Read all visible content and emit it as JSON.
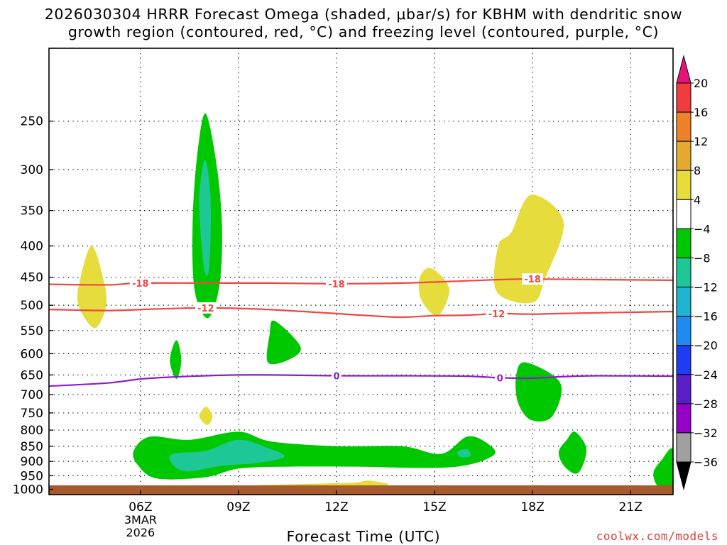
{
  "title_line1": "2026030304 HRRR Forecast Omega (shaded, μbar/s) for KBHM with dendritic snow",
  "title_line2": "growth region (contoured, red, °C) and freezing level (contoured, purple, °C)",
  "credit": "coolwx.com/models",
  "chart_data": {
    "type": "heatmap",
    "title": "2026030304 HRRR Forecast Omega (shaded, μbar/s) for KBHM with dendritic snow growth region (contoured, red, °C) and freezing level (contoured, purple, °C)",
    "xlabel": "Forecast Time (UTC)",
    "ylabel": "",
    "xlim_hours": [
      3.2,
      22.3
    ],
    "ylim_hpa": [
      1020,
      190
    ],
    "y_scale": "log",
    "x_ticks": [
      {
        "hour": 6,
        "label": "06Z",
        "sub1": "3MAR",
        "sub2": "2026"
      },
      {
        "hour": 9,
        "label": "09Z",
        "sub1": "",
        "sub2": ""
      },
      {
        "hour": 12,
        "label": "12Z",
        "sub1": "",
        "sub2": ""
      },
      {
        "hour": 15,
        "label": "15Z",
        "sub1": "",
        "sub2": ""
      },
      {
        "hour": 18,
        "label": "18Z",
        "sub1": "",
        "sub2": ""
      },
      {
        "hour": 21,
        "label": "21Z",
        "sub1": "",
        "sub2": ""
      }
    ],
    "y_ticks": [
      250,
      300,
      350,
      400,
      450,
      500,
      550,
      600,
      650,
      700,
      750,
      800,
      850,
      900,
      950,
      1000
    ],
    "grid": "dotted",
    "surface_level_hpa": 985,
    "surface_color": "#a65a2e",
    "colorbar": {
      "labels": [
        "20",
        "16",
        "12",
        "8",
        "4",
        "−4",
        "−8",
        "−12",
        "−16",
        "−20",
        "−24",
        "−28",
        "−32",
        "−36"
      ],
      "colors": [
        "#f03c3c",
        "#ee8228",
        "#e6aa32",
        "#e6dc3c",
        "#ffffff",
        "#00c800",
        "#1ec896",
        "#1eb4d2",
        "#1e8cf0",
        "#1e3cf0",
        "#5a1ec8",
        "#9600c8",
        "#a0a0a0"
      ],
      "top_arrow_color": "#e6147a",
      "bottom_arrow_color": "#000000"
    },
    "shaded_regions": [
      {
        "class": "pos4",
        "color": "#e6dc3c",
        "points": [
          [
            4.5,
            400
          ],
          [
            4.85,
            450
          ],
          [
            4.95,
            500
          ],
          [
            4.6,
            545
          ],
          [
            4.1,
            500
          ],
          [
            4.15,
            455
          ]
        ]
      },
      {
        "class": "neg4",
        "color": "#00c800",
        "points": [
          [
            8.0,
            243
          ],
          [
            8.35,
            300
          ],
          [
            8.5,
            380
          ],
          [
            8.4,
            470
          ],
          [
            8.05,
            525
          ],
          [
            7.65,
            470
          ],
          [
            7.6,
            360
          ],
          [
            7.75,
            280
          ]
        ]
      },
      {
        "class": "neg8",
        "color": "#1ec896",
        "points": [
          [
            8.0,
            290
          ],
          [
            8.15,
            340
          ],
          [
            8.1,
            435
          ],
          [
            7.95,
            435
          ],
          [
            7.8,
            350
          ],
          [
            7.85,
            310
          ]
        ]
      },
      {
        "class": "neg4",
        "color": "#00c800",
        "points": [
          [
            7.1,
            570
          ],
          [
            7.25,
            615
          ],
          [
            7.1,
            660
          ],
          [
            6.9,
            615
          ]
        ]
      },
      {
        "class": "pos4",
        "color": "#e6dc3c",
        "points": [
          [
            8.0,
            733
          ],
          [
            8.2,
            758
          ],
          [
            8.05,
            785
          ],
          [
            7.8,
            760
          ]
        ]
      },
      {
        "class": "neg4",
        "color": "#00c800",
        "points": [
          [
            10.1,
            530
          ],
          [
            10.9,
            585
          ],
          [
            10.5,
            615
          ],
          [
            9.9,
            620
          ],
          [
            9.95,
            560
          ]
        ]
      },
      {
        "class": "pos4",
        "color": "#e6dc3c",
        "points": [
          [
            14.9,
            435
          ],
          [
            15.45,
            470
          ],
          [
            15.1,
            520
          ],
          [
            14.6,
            490
          ],
          [
            14.55,
            450
          ]
        ]
      },
      {
        "class": "pos4",
        "color": "#e6dc3c",
        "points": [
          [
            17.95,
            330
          ],
          [
            18.95,
            365
          ],
          [
            18.4,
            450
          ],
          [
            18.0,
            495
          ],
          [
            16.9,
            475
          ],
          [
            16.95,
            400
          ],
          [
            17.35,
            380
          ]
        ]
      },
      {
        "class": "neg4",
        "color": "#00c800",
        "points": [
          [
            17.8,
            620
          ],
          [
            18.85,
            670
          ],
          [
            18.6,
            760
          ],
          [
            17.95,
            770
          ],
          [
            17.55,
            720
          ],
          [
            17.5,
            650
          ]
        ]
      },
      {
        "class": "neg4",
        "color": "#00c800",
        "points": [
          [
            19.3,
            805
          ],
          [
            19.65,
            860
          ],
          [
            19.4,
            940
          ],
          [
            19.0,
            920
          ],
          [
            18.8,
            870
          ],
          [
            19.05,
            830
          ]
        ]
      },
      {
        "class": "neg4",
        "color": "#00c800",
        "points": [
          [
            5.8,
            863
          ],
          [
            6.3,
            820
          ],
          [
            7.5,
            830
          ],
          [
            9.0,
            805
          ],
          [
            10.0,
            835
          ],
          [
            12.0,
            850
          ],
          [
            14.0,
            850
          ],
          [
            15.2,
            875
          ],
          [
            16.0,
            820
          ],
          [
            16.6,
            840
          ],
          [
            16.8,
            880
          ],
          [
            15.5,
            920
          ],
          [
            12.5,
            918
          ],
          [
            10.5,
            918
          ],
          [
            9.0,
            925
          ],
          [
            8.0,
            955
          ],
          [
            6.5,
            960
          ],
          [
            5.9,
            910
          ]
        ]
      },
      {
        "class": "neg8",
        "color": "#1ec896",
        "points": [
          [
            7.0,
            875
          ],
          [
            8.0,
            865
          ],
          [
            9.0,
            830
          ],
          [
            10.0,
            860
          ],
          [
            10.4,
            885
          ],
          [
            9.6,
            905
          ],
          [
            8.5,
            915
          ],
          [
            7.4,
            935
          ],
          [
            6.95,
            905
          ]
        ]
      },
      {
        "class": "neg8",
        "color": "#1ec896",
        "points": [
          [
            15.7,
            868
          ],
          [
            16.0,
            860
          ],
          [
            16.1,
            882
          ],
          [
            15.8,
            885
          ]
        ]
      },
      {
        "class": "neg4",
        "color": "#00c800",
        "points": [
          [
            22.3,
            860
          ],
          [
            22.3,
            1000
          ],
          [
            21.85,
            990
          ],
          [
            21.7,
            940
          ],
          [
            21.95,
            895
          ]
        ]
      },
      {
        "class": "pos4",
        "color": "#e6dc3c",
        "points": [
          [
            9.55,
            985
          ],
          [
            11.0,
            980
          ],
          [
            12.5,
            975
          ],
          [
            13.0,
            968
          ],
          [
            13.5,
            985
          ],
          [
            11.0,
            993
          ],
          [
            9.6,
            993
          ]
        ]
      }
    ],
    "contours": [
      {
        "name": "-18",
        "color": "#f04646",
        "labels_at_hours": [
          6.0,
          12.0,
          18.0
        ],
        "points": [
          [
            3.2,
            462
          ],
          [
            5,
            463
          ],
          [
            6,
            460
          ],
          [
            8,
            460
          ],
          [
            10,
            460
          ],
          [
            12,
            461
          ],
          [
            14,
            460
          ],
          [
            16,
            456
          ],
          [
            17,
            454
          ],
          [
            18,
            453
          ],
          [
            20,
            454
          ],
          [
            22.3,
            455
          ]
        ]
      },
      {
        "name": "-12",
        "color": "#f04646",
        "labels_at_hours": [
          8.0,
          16.9
        ],
        "points": [
          [
            3.2,
            508
          ],
          [
            5,
            510
          ],
          [
            6.5,
            507
          ],
          [
            8,
            505
          ],
          [
            9.5,
            507
          ],
          [
            11,
            512
          ],
          [
            12,
            516
          ],
          [
            13,
            520
          ],
          [
            14,
            523
          ],
          [
            15,
            520
          ],
          [
            16,
            519
          ],
          [
            17,
            516
          ],
          [
            18,
            517
          ],
          [
            19.5,
            515
          ],
          [
            22.3,
            512
          ]
        ]
      },
      {
        "name": "0",
        "color": "#8c1ec8",
        "labels_at_hours": [
          12.0,
          17.0
        ],
        "points": [
          [
            3.2,
            678
          ],
          [
            5.0,
            670
          ],
          [
            6.0,
            660
          ],
          [
            7.0,
            655
          ],
          [
            8.0,
            652
          ],
          [
            9.0,
            650
          ],
          [
            10.0,
            650
          ],
          [
            12.0,
            652
          ],
          [
            14.0,
            652
          ],
          [
            16.0,
            653
          ],
          [
            17.0,
            657
          ],
          [
            18.0,
            658
          ],
          [
            19.0,
            654
          ],
          [
            20.0,
            652
          ],
          [
            22.3,
            653
          ]
        ]
      }
    ]
  }
}
